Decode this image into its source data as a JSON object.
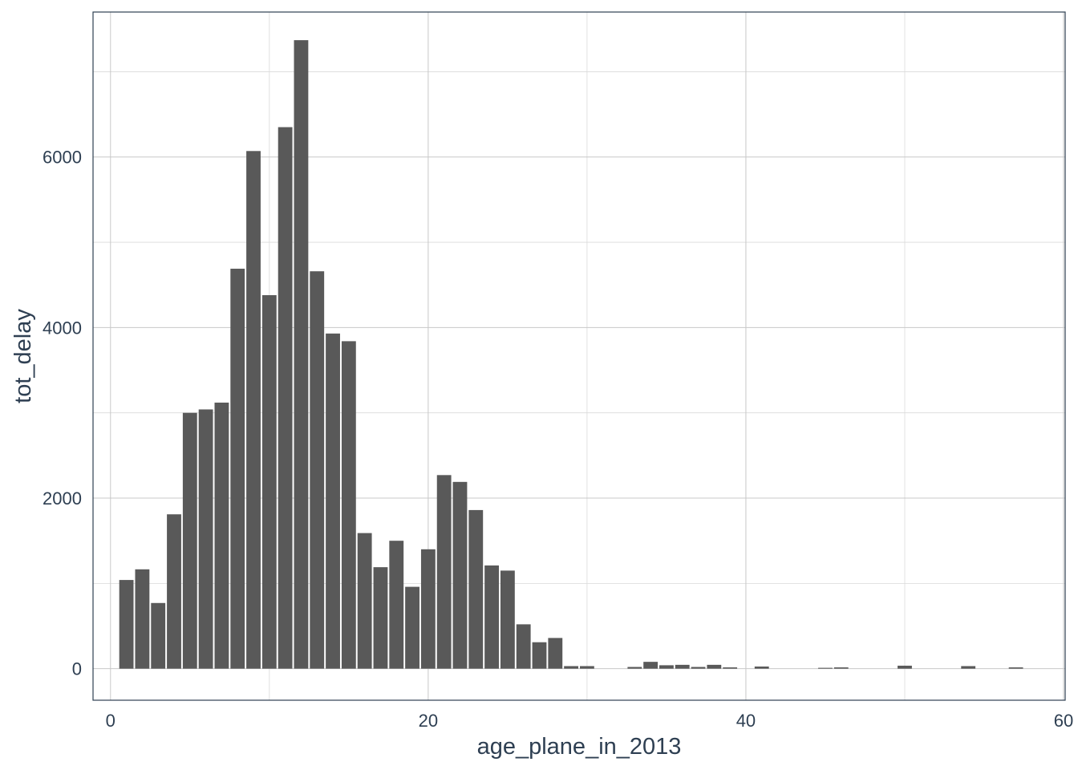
{
  "chart_data": {
    "type": "bar",
    "xlabel": "age_plane_in_2013",
    "ylabel": "tot_delay",
    "xlim": [
      -1.1,
      60.1
    ],
    "ylim": [
      -370,
      7700
    ],
    "x_ticks": [
      0,
      20,
      40,
      60
    ],
    "y_ticks": [
      0,
      2000,
      4000,
      6000
    ],
    "grid": true,
    "bar_color": "#595959",
    "text_color": "#2e3f52",
    "x": [
      1,
      2,
      3,
      4,
      5,
      6,
      7,
      8,
      9,
      10,
      11,
      12,
      13,
      14,
      15,
      16,
      17,
      18,
      19,
      20,
      21,
      22,
      23,
      24,
      25,
      26,
      27,
      28,
      29,
      30,
      33,
      34,
      35,
      36,
      37,
      38,
      39,
      41,
      45,
      46,
      50,
      54,
      57
    ],
    "values": [
      1040,
      1165,
      770,
      1810,
      3000,
      3040,
      3120,
      4690,
      6070,
      4380,
      6350,
      7370,
      4660,
      3930,
      3840,
      1590,
      1190,
      1500,
      960,
      1400,
      2270,
      2190,
      1860,
      1210,
      1150,
      520,
      310,
      360,
      30,
      30,
      20,
      80,
      40,
      45,
      20,
      45,
      15,
      25,
      10,
      15,
      35,
      30,
      15
    ]
  }
}
